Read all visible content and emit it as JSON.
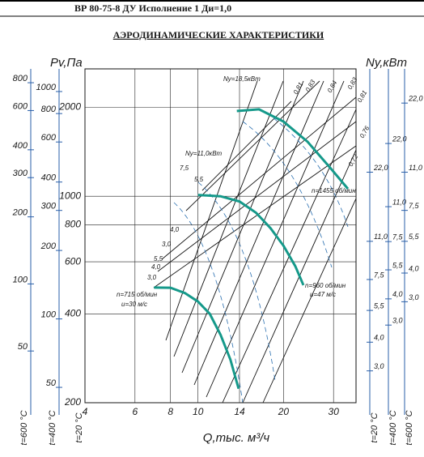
{
  "header": "ВР 80-75-8 ДУ Исполнение 1 Ди=1,0",
  "chart_data": {
    "type": "line",
    "title": "АЭРОДИНАМИЧЕСКИЕ ХАРАКТЕРИСТИКИ",
    "x_label": "Q,тыс. м³/ч",
    "y_label": "Pv,Па",
    "y2_label": "Ny,кВт",
    "xlim": [
      4,
      36
    ],
    "xticks": [
      4,
      6,
      8,
      10,
      14,
      20,
      30
    ],
    "x_log": true,
    "ylim": [
      200,
      2700
    ],
    "yticks": [
      200,
      400,
      600,
      800,
      1000,
      2000
    ],
    "y_log": true,
    "y_scale_label": "t=20 °C",
    "grid": true,
    "extra_y_scales": [
      {
        "label": "t=600 °C",
        "lim": [
          29.3,
          923
        ],
        "ticks": [
          50,
          100,
          200,
          300,
          400,
          600,
          800
        ]
      },
      {
        "label": "t=400 °C",
        "lim": [
          42.8,
          1258
        ],
        "ticks": [
          50,
          100,
          200,
          300,
          400,
          600,
          800,
          1000
        ]
      }
    ],
    "y2_scales": [
      {
        "label": "t=20 °C",
        "lim": [
          2.18,
          62
        ],
        "ticks": [
          {
            "value": 3,
            "label": "3,0"
          },
          {
            "value": 4,
            "label": "4,0"
          },
          {
            "value": 5.5,
            "label": "5,5"
          },
          {
            "value": 7.5,
            "label": "7,5"
          },
          {
            "value": 11,
            "label": "11,0"
          },
          {
            "value": 22,
            "label": "22,0"
          }
        ]
      },
      {
        "label": "t=400 °C",
        "lim": [
          1.28,
          49.9
        ],
        "ticks": [
          {
            "value": 3,
            "label": "3,0"
          },
          {
            "value": 4,
            "label": "4,0"
          },
          {
            "value": 5.5,
            "label": "5,5"
          },
          {
            "value": 7.5,
            "label": "7,5"
          },
          {
            "value": 11,
            "label": "11,0"
          },
          {
            "value": 22,
            "label": "22,0"
          }
        ]
      },
      {
        "label": "t=600 °C",
        "lim": [
          1.09,
          31
        ],
        "ticks": [
          {
            "value": 3,
            "label": "3,0"
          },
          {
            "value": 4,
            "label": "4,0"
          },
          {
            "value": 5.5,
            "label": "5,5"
          },
          {
            "value": 7.5,
            "label": "7,5"
          },
          {
            "value": 11,
            "label": "11,0"
          },
          {
            "value": 22,
            "label": "22,0"
          }
        ]
      }
    ],
    "series": [
      {
        "color": "#15998a",
        "x": [
          13.7,
          16.4,
          20,
          24.3,
          29.6,
          33.7
        ],
        "values": [
          1944,
          1970,
          1790,
          1530,
          1230,
          1060
        ]
      },
      {
        "color": "#15998a",
        "x": [
          10,
          12,
          14,
          16,
          18,
          20,
          22,
          23.5
        ],
        "values": [
          1010,
          1000,
          960,
          880,
          780,
          680,
          580,
          500
        ]
      },
      {
        "color": "#15998a",
        "x": [
          7,
          8,
          9,
          10,
          11,
          12,
          13,
          13.9
        ],
        "values": [
          491,
          490,
          470,
          440,
          400,
          340,
          280,
          223
        ]
      }
    ],
    "annotations": [
      "Ny=18,5кВт",
      "0,81",
      "0,83",
      "0,84",
      "0,83",
      "0,81",
      "0,76",
      "0,72",
      "Ny=11,0кВт",
      "7,5",
      "5,5",
      "4,0",
      "3,0",
      "5,5",
      "4,0",
      "3,0",
      "n=1455 об/мин",
      "n=960 об/мин",
      "u=47 м/с",
      "n=715 об/мин",
      "u=30 м/с"
    ]
  }
}
